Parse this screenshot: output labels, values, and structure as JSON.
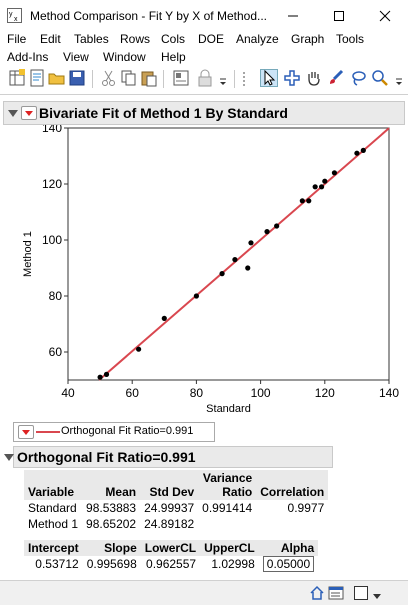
{
  "window": {
    "title": "Method Comparison - Fit Y by X of Method...",
    "minimize": "—",
    "maximize": "☐",
    "close": "✕"
  },
  "menu": {
    "row1": [
      "File",
      "Edit",
      "Tables",
      "Rows",
      "Cols",
      "DOE",
      "Analyze",
      "Graph",
      "Tools"
    ],
    "row2": [
      "Add-Ins",
      "View",
      "Window",
      "Help"
    ]
  },
  "toolbar": {
    "icons": [
      "new-data-table-icon",
      "new-script-icon",
      "open-icon",
      "save-icon",
      "cut-icon",
      "copy-icon",
      "paste-icon",
      "journal-icon",
      "lock-icon",
      "arrow-tool-icon",
      "crosshair-tool-icon",
      "grabber-hand-icon",
      "brush-tool-icon",
      "lasso-tool-icon",
      "magnifier-tool-icon"
    ]
  },
  "report": {
    "main_title": "Bivariate Fit of Method 1 By Standard",
    "legend_label": "Orthogonal Fit Ratio=0.991",
    "sub_title": "Orthogonal Fit Ratio=0.991",
    "colors": {
      "fit_line": "#d9474f",
      "points": "#000000",
      "red_triangle": "#dd2222"
    }
  },
  "chart_data": {
    "type": "scatter",
    "xlabel": "Standard",
    "ylabel": "Method 1",
    "xlim": [
      40,
      140
    ],
    "ylim": [
      50,
      140
    ],
    "xticks": [
      40,
      60,
      80,
      100,
      120,
      140
    ],
    "yticks": [
      60,
      80,
      100,
      120,
      140
    ],
    "grid": false,
    "points": {
      "x": [
        50,
        52,
        62,
        70,
        80,
        88,
        92,
        96,
        97,
        102,
        105,
        113,
        115,
        117,
        119,
        120,
        123,
        130,
        132
      ],
      "y": [
        51,
        52,
        61,
        72,
        80,
        88,
        93,
        90,
        99,
        103,
        105,
        114,
        114,
        119,
        119,
        121,
        124,
        131,
        132
      ]
    },
    "fit_line": {
      "label": "Orthogonal Fit Ratio=0.991",
      "intercept": 0.53712,
      "slope": 0.995698
    }
  },
  "stats_table": {
    "headers": [
      "Variable",
      "Mean",
      "Std Dev",
      "Variance Ratio",
      "Correlation"
    ],
    "header_variance_line1": "Variance",
    "header_variance_line2": "Ratio",
    "rows": [
      [
        "Standard",
        "98.53883",
        "24.99937",
        "0.991414",
        "0.9977"
      ],
      [
        "Method 1",
        "98.65202",
        "24.89182",
        "",
        ""
      ]
    ]
  },
  "fit_table": {
    "headers": [
      "Intercept",
      "Slope",
      "LowerCL",
      "UpperCL",
      "Alpha"
    ],
    "values": [
      "0.53712",
      "0.995698",
      "0.962557",
      "1.02998",
      "0.05000"
    ]
  }
}
